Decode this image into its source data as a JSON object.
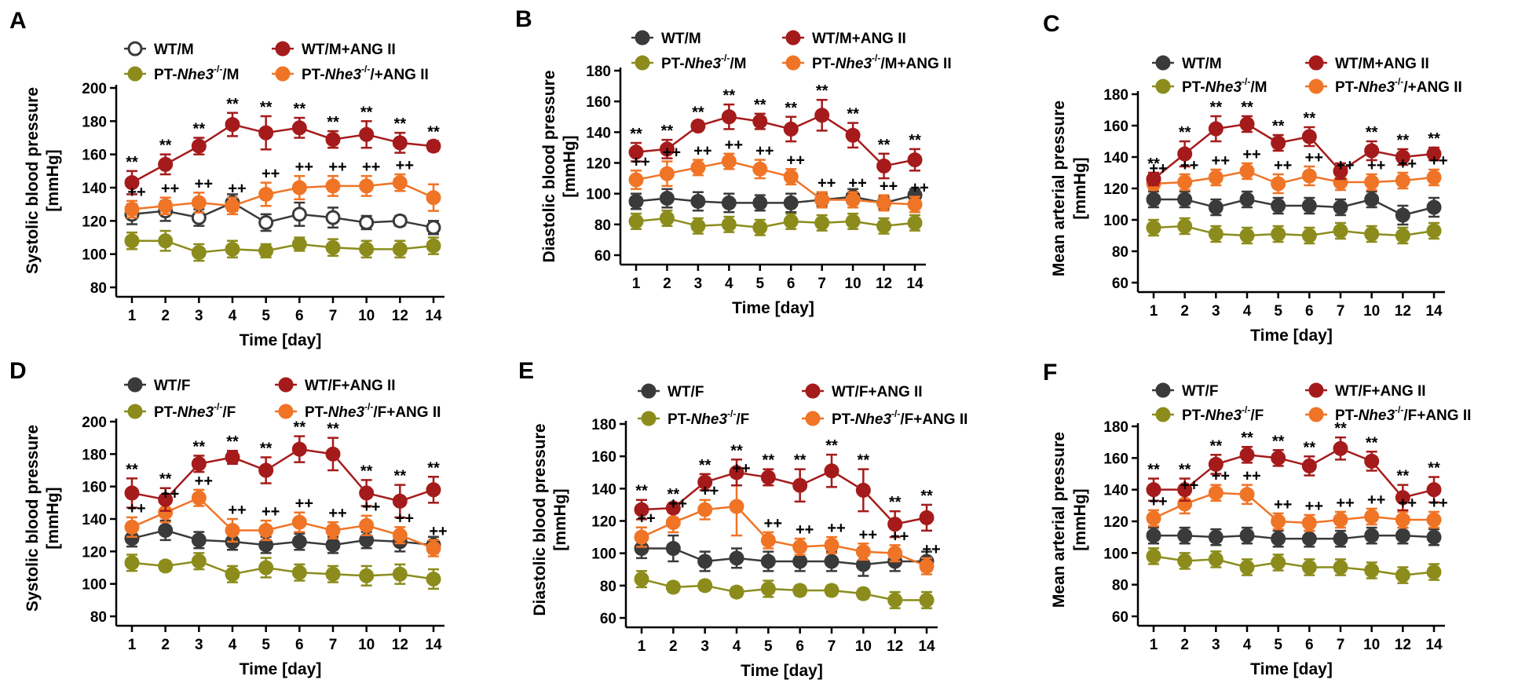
{
  "figure": {
    "x_labels": [
      "1",
      "2",
      "3",
      "4",
      "5",
      "6",
      "7",
      "10",
      "12",
      "14"
    ],
    "xlabel": "Time [day]"
  },
  "colors": {
    "wt": "#3a3a3a",
    "ko": "#8c8c1c",
    "wt_ang": "#a51b1b",
    "ko_ang": "#f07426"
  },
  "chart_data": [
    {
      "type": "line",
      "letter": "A",
      "ylabel": [
        "Systolic blood pressure",
        "[mmHg]"
      ],
      "ylim": [
        80,
        200
      ],
      "yticks": [
        80,
        100,
        120,
        140,
        160,
        180,
        200
      ],
      "x": [
        "1",
        "2",
        "3",
        "4",
        "5",
        "6",
        "7",
        "10",
        "12",
        "14"
      ],
      "wt_open": true,
      "series": [
        {
          "key": "wt",
          "name_pre": "WT/M",
          "name_italic": "",
          "name_sup": "",
          "name_post": "",
          "values": [
            124,
            126,
            122,
            131,
            119,
            124,
            122,
            119,
            120,
            116
          ],
          "errors": [
            6,
            6,
            5,
            5,
            5,
            7,
            6,
            4,
            3,
            4
          ]
        },
        {
          "key": "ko",
          "name_pre": "PT-",
          "name_italic": "Nhe3",
          "name_sup": "-/-",
          "name_post": "/M",
          "values": [
            108,
            108,
            101,
            103,
            102,
            106,
            104,
            103,
            103,
            105
          ],
          "errors": [
            5,
            6,
            5,
            5,
            4,
            4,
            5,
            5,
            5,
            5
          ]
        },
        {
          "key": "wt_ang",
          "name_pre": "WT/M+ANG II",
          "name_italic": "",
          "name_sup": "",
          "name_post": "",
          "values": [
            143,
            154,
            165,
            178,
            173,
            176,
            169,
            172,
            167,
            165
          ],
          "errors": [
            7,
            6,
            5,
            7,
            10,
            6,
            5,
            8,
            6,
            3
          ]
        },
        {
          "key": "ko_ang",
          "name_pre": "PT-",
          "name_italic": "Nhe3",
          "name_sup": "-/-",
          "name_post": "/+ANG II",
          "values": [
            127,
            129,
            131,
            129,
            136,
            140,
            141,
            141,
            143,
            134
          ],
          "errors": [
            5,
            5,
            6,
            5,
            7,
            7,
            6,
            6,
            5,
            8
          ]
        }
      ],
      "sig_top": [
        "**",
        "**",
        "**",
        "**",
        "**",
        "**",
        "**",
        "**",
        "**",
        "**"
      ],
      "sig_mid": [
        "++",
        "++",
        "++",
        "++",
        "++",
        "++",
        "++",
        "++",
        "++",
        ""
      ]
    },
    {
      "type": "line",
      "letter": "B",
      "ylabel": [
        "Diastolic blood pressure",
        "[mmHg]"
      ],
      "ylim": [
        60,
        180
      ],
      "yticks": [
        60,
        80,
        100,
        120,
        140,
        160,
        180
      ],
      "x": [
        "1",
        "2",
        "3",
        "4",
        "5",
        "6",
        "7",
        "10",
        "12",
        "14"
      ],
      "wt_open": false,
      "series": [
        {
          "key": "wt",
          "name_pre": "WT/M",
          "name_italic": "",
          "name_sup": "",
          "name_post": "",
          "values": [
            95,
            97,
            95,
            94,
            94,
            94,
            96,
            98,
            94,
            99
          ],
          "errors": [
            5,
            6,
            6,
            6,
            5,
            6,
            4,
            5,
            4,
            4
          ]
        },
        {
          "key": "ko",
          "name_pre": "PT-",
          "name_italic": "Nhe3",
          "name_sup": "-/-",
          "name_post": "/M",
          "values": [
            82,
            84,
            79,
            80,
            78,
            82,
            81,
            82,
            79,
            81
          ],
          "errors": [
            5,
            5,
            5,
            5,
            5,
            5,
            5,
            5,
            5,
            5
          ]
        },
        {
          "key": "wt_ang",
          "name_pre": "WT/M+ANG II",
          "name_italic": "",
          "name_sup": "",
          "name_post": "",
          "values": [
            127,
            129,
            144,
            150,
            147,
            142,
            151,
            138,
            118,
            122
          ],
          "errors": [
            6,
            6,
            3,
            8,
            5,
            8,
            10,
            8,
            8,
            7
          ]
        },
        {
          "key": "ko_ang",
          "name_pre": "PT-",
          "name_italic": "Nhe3",
          "name_sup": "-/-",
          "name_post": "/M+ANG II",
          "values": [
            109,
            113,
            117,
            121,
            116,
            111,
            96,
            96,
            94,
            93
          ],
          "errors": [
            6,
            8,
            5,
            5,
            6,
            5,
            5,
            5,
            5,
            5
          ]
        }
      ],
      "sig_top": [
        "**",
        "**",
        "**",
        "**",
        "**",
        "**",
        "**",
        "**",
        "**",
        "**"
      ],
      "sig_mid": [
        "++",
        "++",
        "++",
        "++",
        "++",
        "++",
        "++",
        "++",
        "++",
        "++"
      ]
    },
    {
      "type": "line",
      "letter": "C",
      "ylabel": [
        "Mean arterial pressure",
        "[mmHg]"
      ],
      "ylim": [
        60,
        180
      ],
      "yticks": [
        60,
        80,
        100,
        120,
        140,
        160,
        180
      ],
      "x": [
        "1",
        "2",
        "3",
        "4",
        "5",
        "6",
        "7",
        "10",
        "12",
        "14"
      ],
      "wt_open": false,
      "series": [
        {
          "key": "wt",
          "name_pre": "WT/M",
          "name_italic": "",
          "name_sup": "",
          "name_post": "",
          "values": [
            113,
            113,
            108,
            113,
            109,
            109,
            108,
            113,
            103,
            108
          ],
          "errors": [
            5,
            5,
            5,
            5,
            5,
            5,
            5,
            5,
            6,
            6
          ]
        },
        {
          "key": "ko",
          "name_pre": "PT-",
          "name_italic": "Nhe3",
          "name_sup": "-/-",
          "name_post": "/M",
          "values": [
            95,
            96,
            91,
            90,
            91,
            90,
            93,
            91,
            90,
            93
          ],
          "errors": [
            5,
            5,
            5,
            5,
            5,
            5,
            5,
            5,
            5,
            5
          ]
        },
        {
          "key": "wt_ang",
          "name_pre": "WT/M+ANG II",
          "name_italic": "",
          "name_sup": "",
          "name_post": "",
          "values": [
            126,
            142,
            158,
            161,
            149,
            153,
            131,
            144,
            140,
            142
          ],
          "errors": [
            4,
            8,
            8,
            5,
            5,
            6,
            5,
            6,
            5,
            4
          ]
        },
        {
          "key": "ko_ang",
          "name_pre": "PT-",
          "name_italic": "Nhe3",
          "name_sup": "-/-",
          "name_post": "/+ANG II",
          "values": [
            123,
            124,
            127,
            131,
            123,
            128,
            124,
            124,
            125,
            127
          ],
          "errors": [
            4,
            5,
            5,
            5,
            6,
            6,
            5,
            5,
            5,
            5
          ]
        }
      ],
      "sig_top": [
        "**",
        "**",
        "**",
        "**",
        "**",
        "**",
        "",
        "**",
        "**",
        "**"
      ],
      "sig_mid": [
        "++",
        "++",
        "++",
        "++",
        "++",
        "++",
        "++",
        "++",
        "++",
        "++"
      ]
    },
    {
      "type": "line",
      "letter": "D",
      "ylabel": [
        "Systolic blood pressure",
        "[mmHg]"
      ],
      "ylim": [
        80,
        200
      ],
      "yticks": [
        80,
        100,
        120,
        140,
        160,
        180,
        200
      ],
      "x": [
        "1",
        "2",
        "3",
        "4",
        "5",
        "6",
        "7",
        "10",
        "12",
        "14"
      ],
      "wt_open": false,
      "series": [
        {
          "key": "wt",
          "name_pre": "WT/F",
          "name_italic": "",
          "name_sup": "",
          "name_post": "",
          "values": [
            128,
            133,
            127,
            126,
            124,
            126,
            124,
            127,
            126,
            124
          ],
          "errors": [
            5,
            6,
            5,
            5,
            5,
            5,
            5,
            5,
            6,
            5
          ]
        },
        {
          "key": "ko",
          "name_pre": "PT-",
          "name_italic": "Nhe3",
          "name_sup": "-/-",
          "name_post": "/F",
          "values": [
            113,
            111,
            114,
            106,
            110,
            107,
            106,
            105,
            106,
            103
          ],
          "errors": [
            5,
            3,
            5,
            5,
            6,
            5,
            5,
            6,
            6,
            6
          ]
        },
        {
          "key": "wt_ang",
          "name_pre": "WT/F+ANG II",
          "name_italic": "",
          "name_sup": "",
          "name_post": "",
          "values": [
            156,
            152,
            174,
            178,
            170,
            183,
            180,
            156,
            151,
            158
          ],
          "errors": [
            9,
            7,
            5,
            4,
            8,
            8,
            10,
            8,
            10,
            8
          ]
        },
        {
          "key": "ko_ang",
          "name_pre": "PT-",
          "name_italic": "Nhe3",
          "name_sup": "-/-",
          "name_post": "/F+ANG II",
          "values": [
            135,
            144,
            153,
            133,
            133,
            138,
            133,
            136,
            130,
            122
          ],
          "errors": [
            6,
            6,
            5,
            7,
            6,
            6,
            5,
            6,
            5,
            5
          ]
        }
      ],
      "sig_top": [
        "**",
        "**",
        "**",
        "**",
        "**",
        "**",
        "**",
        "**",
        "**",
        "**"
      ],
      "sig_mid": [
        "++",
        "++",
        "++",
        "++",
        "++",
        "++",
        "++",
        "++",
        "++",
        "++"
      ]
    },
    {
      "type": "line",
      "letter": "E",
      "ylabel": [
        "Diastolic blood pressure",
        "[mmHg]"
      ],
      "ylim": [
        60,
        180
      ],
      "yticks": [
        60,
        80,
        100,
        120,
        140,
        160,
        180
      ],
      "x": [
        "1",
        "2",
        "3",
        "4",
        "5",
        "6",
        "7",
        "10",
        "12",
        "14"
      ],
      "wt_open": false,
      "series": [
        {
          "key": "wt",
          "name_pre": "WT/F",
          "name_italic": "",
          "name_sup": "",
          "name_post": "",
          "values": [
            103,
            103,
            95,
            97,
            95,
            95,
            95,
            93,
            95,
            95
          ],
          "errors": [
            6,
            8,
            6,
            6,
            6,
            6,
            6,
            7,
            6,
            6
          ]
        },
        {
          "key": "ko",
          "name_pre": "PT-",
          "name_italic": "Nhe3",
          "name_sup": "-/-",
          "name_post": "/F",
          "values": [
            84,
            79,
            80,
            76,
            78,
            77,
            77,
            75,
            71,
            71
          ],
          "errors": [
            5,
            3,
            3,
            3,
            5,
            3,
            3,
            3,
            5,
            5
          ]
        },
        {
          "key": "wt_ang",
          "name_pre": "WT/F+ANG II",
          "name_italic": "",
          "name_sup": "",
          "name_post": "",
          "values": [
            127,
            128,
            144,
            150,
            147,
            142,
            151,
            139,
            118,
            122
          ],
          "errors": [
            6,
            3,
            5,
            8,
            5,
            10,
            10,
            13,
            8,
            8
          ]
        },
        {
          "key": "ko_ang",
          "name_pre": "PT-",
          "name_italic": "Nhe3",
          "name_sup": "-/-",
          "name_post": "/F+ANG II",
          "values": [
            110,
            119,
            127,
            129,
            108,
            104,
            105,
            101,
            100,
            92
          ],
          "errors": [
            6,
            6,
            6,
            18,
            5,
            5,
            5,
            5,
            5,
            5
          ]
        }
      ],
      "sig_top": [
        "**",
        "**",
        "**",
        "**",
        "**",
        "**",
        "**",
        "**",
        "**",
        "**"
      ],
      "sig_mid": [
        "++",
        "++",
        "++",
        "++",
        "++",
        "++",
        "++",
        "++",
        "++",
        "++"
      ]
    },
    {
      "type": "line",
      "letter": "F",
      "ylabel": [
        "Mean arterial pressure",
        "[mmHg]"
      ],
      "ylim": [
        60,
        180
      ],
      "yticks": [
        60,
        80,
        100,
        120,
        140,
        160,
        180
      ],
      "x": [
        "1",
        "2",
        "3",
        "4",
        "5",
        "6",
        "7",
        "10",
        "12",
        "14"
      ],
      "wt_open": false,
      "series": [
        {
          "key": "wt",
          "name_pre": "WT/F",
          "name_italic": "",
          "name_sup": "",
          "name_post": "",
          "values": [
            111,
            111,
            110,
            111,
            109,
            109,
            109,
            111,
            111,
            110
          ],
          "errors": [
            5,
            5,
            5,
            5,
            5,
            5,
            5,
            5,
            5,
            5
          ]
        },
        {
          "key": "ko",
          "name_pre": "PT-",
          "name_italic": "Nhe3",
          "name_sup": "-/-",
          "name_post": "/F",
          "values": [
            98,
            95,
            96,
            91,
            94,
            91,
            91,
            89,
            86,
            88
          ],
          "errors": [
            5,
            5,
            5,
            5,
            5,
            5,
            5,
            5,
            5,
            5
          ]
        },
        {
          "key": "wt_ang",
          "name_pre": "WT/F+ANG II",
          "name_italic": "",
          "name_sup": "",
          "name_post": "",
          "values": [
            140,
            140,
            156,
            162,
            160,
            155,
            166,
            158,
            135,
            140
          ],
          "errors": [
            7,
            7,
            6,
            5,
            5,
            6,
            7,
            6,
            8,
            8
          ]
        },
        {
          "key": "ko_ang",
          "name_pre": "PT-",
          "name_italic": "Nhe3",
          "name_sup": "-/-",
          "name_post": "/F+ANG II",
          "values": [
            122,
            131,
            138,
            137,
            120,
            119,
            121,
            123,
            121,
            121
          ],
          "errors": [
            5,
            6,
            5,
            6,
            5,
            5,
            5,
            5,
            5,
            5
          ]
        }
      ],
      "sig_top": [
        "**",
        "**",
        "**",
        "**",
        "**",
        "**",
        "**",
        "**",
        "**",
        "**"
      ],
      "sig_mid": [
        "++",
        "++",
        "++",
        "++",
        "++",
        "++",
        "++",
        "++",
        "++",
        "++"
      ]
    }
  ]
}
